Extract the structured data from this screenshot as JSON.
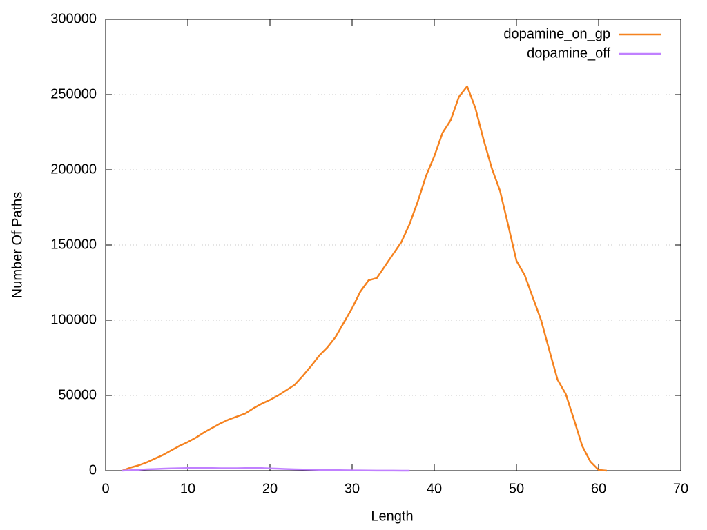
{
  "chart_data": {
    "type": "line",
    "x_label": "Length",
    "y_label": "Number Of Paths",
    "xlim": [
      0,
      70
    ],
    "xticks": [
      0,
      10,
      20,
      30,
      40,
      50,
      60,
      70
    ],
    "ylim": [
      0,
      300000
    ],
    "yticks": [
      0,
      50000,
      100000,
      150000,
      200000,
      250000,
      300000
    ],
    "grid": true,
    "legend": "top-right",
    "series": [
      {
        "name": "dopamine_on_gp",
        "color": "#f5821f",
        "x": [
          2,
          3,
          4,
          5,
          6,
          7,
          8,
          9,
          10,
          11,
          12,
          13,
          14,
          15,
          16,
          17,
          18,
          19,
          20,
          21,
          22,
          23,
          24,
          25,
          26,
          27,
          28,
          29,
          30,
          31,
          32,
          33,
          34,
          35,
          36,
          37,
          38,
          39,
          40,
          41,
          42,
          43,
          44,
          45,
          46,
          47,
          48,
          49,
          50,
          51,
          52,
          53,
          54,
          55,
          56,
          57,
          58,
          59,
          60,
          61
        ],
        "values": [
          0,
          2000,
          3500,
          5500,
          8000,
          10500,
          13500,
          16500,
          19000,
          22000,
          25500,
          28500,
          31500,
          34000,
          36000,
          38000,
          41500,
          44500,
          47000,
          50000,
          53500,
          57000,
          63000,
          69500,
          76500,
          82000,
          89000,
          98500,
          108000,
          119000,
          126500,
          128000,
          136000,
          144000,
          152000,
          164000,
          179000,
          196000,
          209000,
          224500,
          233000,
          248500,
          255500,
          241000,
          220000,
          201000,
          186000,
          163000,
          139500,
          130000,
          115000,
          100000,
          80000,
          60500,
          51000,
          34000,
          16500,
          6000,
          500,
          0
        ]
      },
      {
        "name": "dopamine_off",
        "color": "#c080ff",
        "x": [
          2,
          3,
          4,
          5,
          6,
          7,
          8,
          9,
          10,
          11,
          12,
          13,
          14,
          15,
          16,
          17,
          18,
          19,
          20,
          21,
          22,
          23,
          24,
          25,
          26,
          27,
          28,
          29,
          30,
          31,
          32,
          33,
          34,
          35,
          36,
          37
        ],
        "values": [
          0,
          300,
          600,
          900,
          1100,
          1300,
          1500,
          1600,
          1700,
          1700,
          1700,
          1700,
          1600,
          1600,
          1600,
          1700,
          1800,
          1700,
          1500,
          1300,
          1100,
          900,
          800,
          700,
          600,
          500,
          400,
          300,
          200,
          150,
          100,
          80,
          60,
          40,
          20,
          0
        ]
      }
    ]
  }
}
